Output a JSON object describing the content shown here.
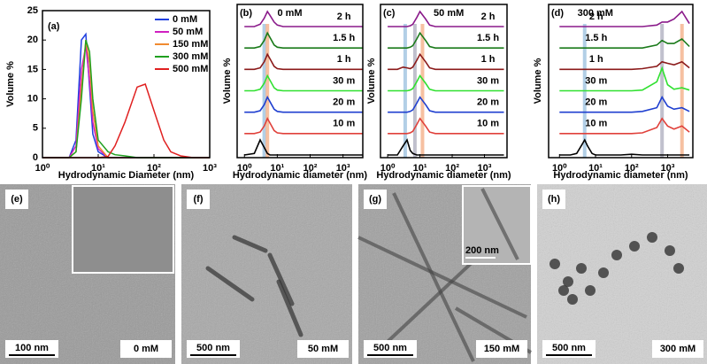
{
  "chart_data": [
    {
      "type": "line",
      "panel": "(a)",
      "xlabel": "Hydrodynamic Diameter (nm)",
      "ylabel": "Volume %",
      "log_x": true,
      "xlim": [
        1,
        1000
      ],
      "ylim": [
        0,
        25
      ],
      "xticks": [
        {
          "value": 1,
          "label": "10⁰"
        },
        {
          "value": 10,
          "label": "10¹"
        },
        {
          "value": 100,
          "label": "10²"
        },
        {
          "value": 1000,
          "label": "10³"
        }
      ],
      "yticks": [
        0,
        5,
        10,
        15,
        20,
        25
      ],
      "legend": "top-right",
      "x": [
        1,
        2,
        3,
        4,
        5,
        6,
        7,
        8,
        10,
        15,
        20,
        30,
        50,
        70,
        100,
        150,
        200,
        300,
        500,
        1000
      ],
      "series": [
        {
          "name": "0 mM",
          "color": "#1f3fe0",
          "values": [
            0,
            0,
            0,
            3,
            20,
            21,
            12,
            4,
            1,
            0,
            0,
            0,
            0,
            0,
            0,
            0,
            0,
            0,
            0,
            0
          ]
        },
        {
          "name": "50 mM",
          "color": "#d020c0",
          "values": [
            0,
            0,
            0,
            2,
            15,
            19,
            13,
            6,
            1.5,
            0,
            0,
            0,
            0,
            0,
            0,
            0,
            0,
            0,
            0,
            0
          ]
        },
        {
          "name": "150 mM",
          "color": "#f08a30",
          "values": [
            0,
            0,
            0,
            1,
            12,
            20,
            16,
            8,
            2,
            0,
            0,
            0,
            0,
            0,
            0,
            0,
            0,
            0,
            0,
            0
          ]
        },
        {
          "name": "300 mM",
          "color": "#20a020",
          "values": [
            0,
            0,
            0,
            1,
            10,
            20,
            18,
            10,
            3,
            1,
            0.5,
            0.3,
            0,
            0,
            0,
            0,
            0,
            0,
            0,
            0
          ]
        },
        {
          "name": "500 mM",
          "color": "#e02020",
          "values": [
            0,
            0,
            0,
            0,
            0,
            0,
            0,
            0,
            0,
            0.2,
            2,
            6,
            12,
            12.5,
            8,
            3,
            1,
            0.3,
            0,
            0
          ]
        }
      ]
    },
    {
      "type": "waterfall",
      "panel": "(b)",
      "annotation": "0 mM",
      "xlabel": "Hydrodynamic diameter (nm)",
      "ylabel": "Volume %",
      "log_x": true,
      "xlim": [
        0.6,
        4000
      ],
      "xticks": [
        {
          "value": 1,
          "label": "10⁰"
        },
        {
          "value": 10,
          "label": "10¹"
        },
        {
          "value": 100,
          "label": "10²"
        },
        {
          "value": 1000,
          "label": "10³"
        }
      ],
      "reference_lines": [
        {
          "value": 4,
          "color": "#9fc3e0"
        },
        {
          "value": 5,
          "color": "#f4b08a"
        }
      ],
      "x": [
        1,
        2,
        3,
        4,
        5,
        6,
        8,
        10,
        15,
        20,
        30,
        50,
        100,
        200,
        500,
        700,
        1000,
        1500,
        2500,
        4000
      ],
      "series": [
        {
          "color": "#000000",
          "values": [
            0,
            0.1,
            1,
            0.5,
            0.1,
            0,
            0,
            0,
            0,
            0,
            0,
            0,
            0,
            0,
            0,
            0,
            0,
            0,
            0,
            0
          ]
        },
        {
          "name": "10 m",
          "color": "#e0403a",
          "values": [
            0,
            0,
            0.1,
            0.5,
            1,
            0.7,
            0.2,
            0.05,
            0,
            0,
            0,
            0,
            0,
            0,
            0,
            0,
            0,
            0,
            0,
            0
          ]
        },
        {
          "name": "20 m",
          "color": "#1f3fd0",
          "values": [
            0,
            0,
            0.1,
            0.5,
            1,
            0.7,
            0.2,
            0.05,
            0,
            0,
            0,
            0,
            0,
            0,
            0,
            0,
            0,
            0,
            0,
            0
          ]
        },
        {
          "name": "30 m",
          "color": "#30e030",
          "values": [
            0,
            0,
            0.1,
            0.5,
            1,
            0.7,
            0.2,
            0.05,
            0,
            0,
            0,
            0,
            0,
            0,
            0,
            0,
            0,
            0,
            0,
            0
          ]
        },
        {
          "name": "1 h",
          "color": "#8b1a1a",
          "values": [
            0,
            0,
            0.1,
            0.5,
            1,
            0.7,
            0.2,
            0.05,
            0,
            0,
            0,
            0,
            0,
            0,
            0,
            0,
            0,
            0,
            0,
            0
          ]
        },
        {
          "name": "1.5 h",
          "color": "#1a7a1a",
          "values": [
            0,
            0,
            0.1,
            0.5,
            1,
            0.7,
            0.2,
            0.05,
            0,
            0,
            0,
            0,
            0,
            0,
            0,
            0,
            0,
            0,
            0,
            0
          ]
        },
        {
          "name": "2 h",
          "color": "#8a1a8a",
          "values": [
            0,
            0,
            0.15,
            0.55,
            1,
            0.75,
            0.3,
            0.1,
            0,
            0,
            0,
            0,
            0,
            0,
            0,
            0,
            0,
            0,
            0,
            0
          ]
        }
      ]
    },
    {
      "type": "waterfall",
      "panel": "(c)",
      "annotation": "50 mM",
      "xlabel": "Hydrodynamic diameter (nm)",
      "ylabel": "Volume %",
      "log_x": true,
      "xlim": [
        0.6,
        5000
      ],
      "xticks": [
        {
          "value": 1,
          "label": "10⁰"
        },
        {
          "value": 10,
          "label": "10¹"
        },
        {
          "value": 100,
          "label": "10²"
        },
        {
          "value": 1000,
          "label": "10³"
        }
      ],
      "reference_lines": [
        {
          "value": 3.5,
          "color": "#9fc3e0"
        },
        {
          "value": 7,
          "color": "#b0b0c0"
        },
        {
          "value": 12,
          "color": "#f4b08a"
        }
      ],
      "x": [
        1,
        2,
        3,
        4,
        5,
        6,
        8,
        10,
        15,
        20,
        30,
        50,
        100,
        200,
        500,
        700,
        1000,
        1500,
        2500,
        4000
      ],
      "series": [
        {
          "color": "#000000",
          "values": [
            0,
            0,
            0.6,
            1,
            0.3,
            0.1,
            0,
            0,
            0,
            0,
            0,
            0,
            0,
            0,
            0,
            0,
            0,
            0,
            0,
            0
          ]
        },
        {
          "name": "10 m",
          "color": "#e0403a",
          "values": [
            0,
            0,
            0,
            0,
            0.05,
            0.15,
            0.6,
            1,
            0.5,
            0.1,
            0,
            0,
            0,
            0,
            0,
            0,
            0,
            0,
            0,
            0
          ]
        },
        {
          "name": "20 m",
          "color": "#1f3fd0",
          "values": [
            0,
            0,
            0,
            0,
            0.05,
            0.15,
            0.6,
            1,
            0.5,
            0.1,
            0,
            0,
            0,
            0,
            0,
            0,
            0,
            0,
            0,
            0
          ]
        },
        {
          "name": "30 m",
          "color": "#30e030",
          "values": [
            0,
            0,
            0,
            0,
            0.05,
            0.15,
            0.6,
            1,
            0.5,
            0.1,
            0,
            0,
            0,
            0,
            0,
            0,
            0,
            0,
            0,
            0
          ]
        },
        {
          "name": "1 h",
          "color": "#8b1a1a",
          "values": [
            0,
            0,
            0.15,
            0.1,
            0.05,
            0.15,
            0.6,
            1,
            0.5,
            0.1,
            0,
            0,
            0,
            0,
            0,
            0,
            0,
            0,
            0,
            0
          ]
        },
        {
          "name": "1.5 h",
          "color": "#1a7a1a",
          "values": [
            0,
            0,
            0,
            0,
            0.05,
            0.15,
            0.6,
            1,
            0.5,
            0.1,
            0,
            0,
            0,
            0,
            0,
            0,
            0,
            0,
            0,
            0
          ]
        },
        {
          "name": "2 h",
          "color": "#8a1a8a",
          "values": [
            0,
            0,
            0,
            0,
            0.05,
            0.15,
            0.6,
            1,
            0.5,
            0.1,
            0,
            0,
            0,
            0,
            0,
            0,
            0,
            0,
            0,
            0
          ]
        }
      ]
    },
    {
      "type": "waterfall",
      "panel": "(d)",
      "annotation": "300 mM",
      "xlabel": "Hydrodynamic diameter (nm)",
      "ylabel": "Volume %",
      "log_x": true,
      "xlim": [
        0.5,
        5000
      ],
      "xticks": [
        {
          "value": 1,
          "label": "10⁰"
        },
        {
          "value": 10,
          "label": "10¹"
        },
        {
          "value": 100,
          "label": "10²"
        },
        {
          "value": 1000,
          "label": "10³"
        }
      ],
      "reference_lines": [
        {
          "value": 5,
          "color": "#9fc3e0"
        },
        {
          "value": 700,
          "color": "#b0b0c0"
        },
        {
          "value": 2500,
          "color": "#f4b08a"
        }
      ],
      "x": [
        1,
        2,
        3,
        4,
        5,
        6,
        8,
        10,
        15,
        20,
        30,
        50,
        100,
        200,
        500,
        700,
        1000,
        1500,
        2500,
        4000
      ],
      "series": [
        {
          "color": "#000000",
          "values": [
            0,
            0,
            0.1,
            0.6,
            1,
            0.6,
            0.1,
            0,
            0,
            0,
            0,
            0,
            0.05,
            0,
            0,
            0,
            0,
            0,
            0,
            0
          ]
        },
        {
          "name": "10 m",
          "color": "#e0403a",
          "values": [
            0,
            0,
            0,
            0,
            0,
            0,
            0,
            0,
            0,
            0,
            0,
            0,
            0,
            0.05,
            0.4,
            1,
            0.5,
            0.3,
            0.5,
            0.1
          ]
        },
        {
          "name": "20 m",
          "color": "#1f3fd0",
          "values": [
            0,
            0,
            0,
            0,
            0,
            0,
            0,
            0,
            0,
            0,
            0,
            0,
            0,
            0.05,
            0.3,
            1,
            0.4,
            0.2,
            0.3,
            0.05
          ]
        },
        {
          "name": "30 m",
          "color": "#30e030",
          "values": [
            0,
            0,
            0,
            0,
            0,
            0,
            0,
            0,
            0,
            0,
            0,
            0,
            0,
            0.05,
            0.6,
            1.5,
            0.4,
            0.1,
            0.2,
            0.05
          ]
        },
        {
          "name": "1 h",
          "color": "#8b1a1a",
          "values": [
            0,
            0,
            0,
            0,
            0,
            0,
            0,
            0,
            0,
            0,
            0,
            0,
            0,
            0.05,
            0.2,
            0.5,
            0.4,
            0.3,
            0.5,
            0.1
          ]
        },
        {
          "name": "1.5 h",
          "color": "#1a7a1a",
          "values": [
            0,
            0,
            0,
            0,
            0,
            0,
            0,
            0,
            0,
            0,
            0,
            0,
            0,
            0,
            0.2,
            0.5,
            0.3,
            0.3,
            0.6,
            0.1
          ]
        },
        {
          "name": "2 h",
          "color": "#8a1a8a",
          "values": [
            0,
            0,
            0,
            0,
            0,
            0,
            0,
            0,
            0,
            0,
            0,
            0,
            0,
            0,
            0.1,
            0.3,
            0.3,
            0.5,
            1,
            0.2
          ]
        }
      ]
    }
  ],
  "images": [
    {
      "label": "(e)",
      "scale_bar": "100 nm",
      "condition": "0 mM"
    },
    {
      "label": "(f)",
      "scale_bar": "500 nm",
      "condition": "50 mM"
    },
    {
      "label": "(g)",
      "scale_bar": "500 nm",
      "condition": "150 mM",
      "inset_scale_bar": "200 nm"
    },
    {
      "label": "(h)",
      "scale_bar": "500 nm",
      "condition": "300 mM"
    }
  ]
}
